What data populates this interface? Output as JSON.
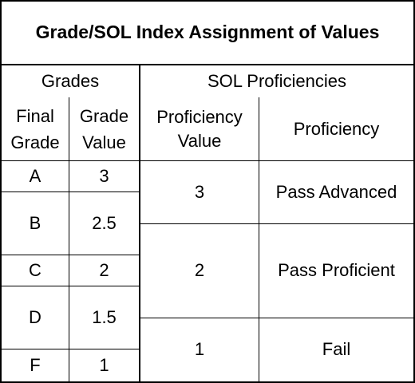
{
  "table": {
    "title": "Grade/SOL Index Assignment of Values",
    "grades_header": "Grades",
    "sol_header": "SOL Proficiencies",
    "final_grade_header": [
      "Final",
      "Grade"
    ],
    "grade_value_header": [
      "Grade",
      "Value"
    ],
    "proficiency_value_header": [
      "Proficiency",
      "Value"
    ],
    "proficiency_header": "Proficiency",
    "grade_rows": [
      {
        "grade": "A",
        "value": "3"
      },
      {
        "grade": "B",
        "value": "2.5"
      },
      {
        "grade": "C",
        "value": "2"
      },
      {
        "grade": "D",
        "value": "1.5"
      },
      {
        "grade": "F",
        "value": "1"
      }
    ],
    "proficiency_rows": [
      {
        "value": "3",
        "label": "Pass Advanced"
      },
      {
        "value": "2",
        "label": "Pass Proficient"
      },
      {
        "value": "1",
        "label": "Fail"
      }
    ]
  }
}
